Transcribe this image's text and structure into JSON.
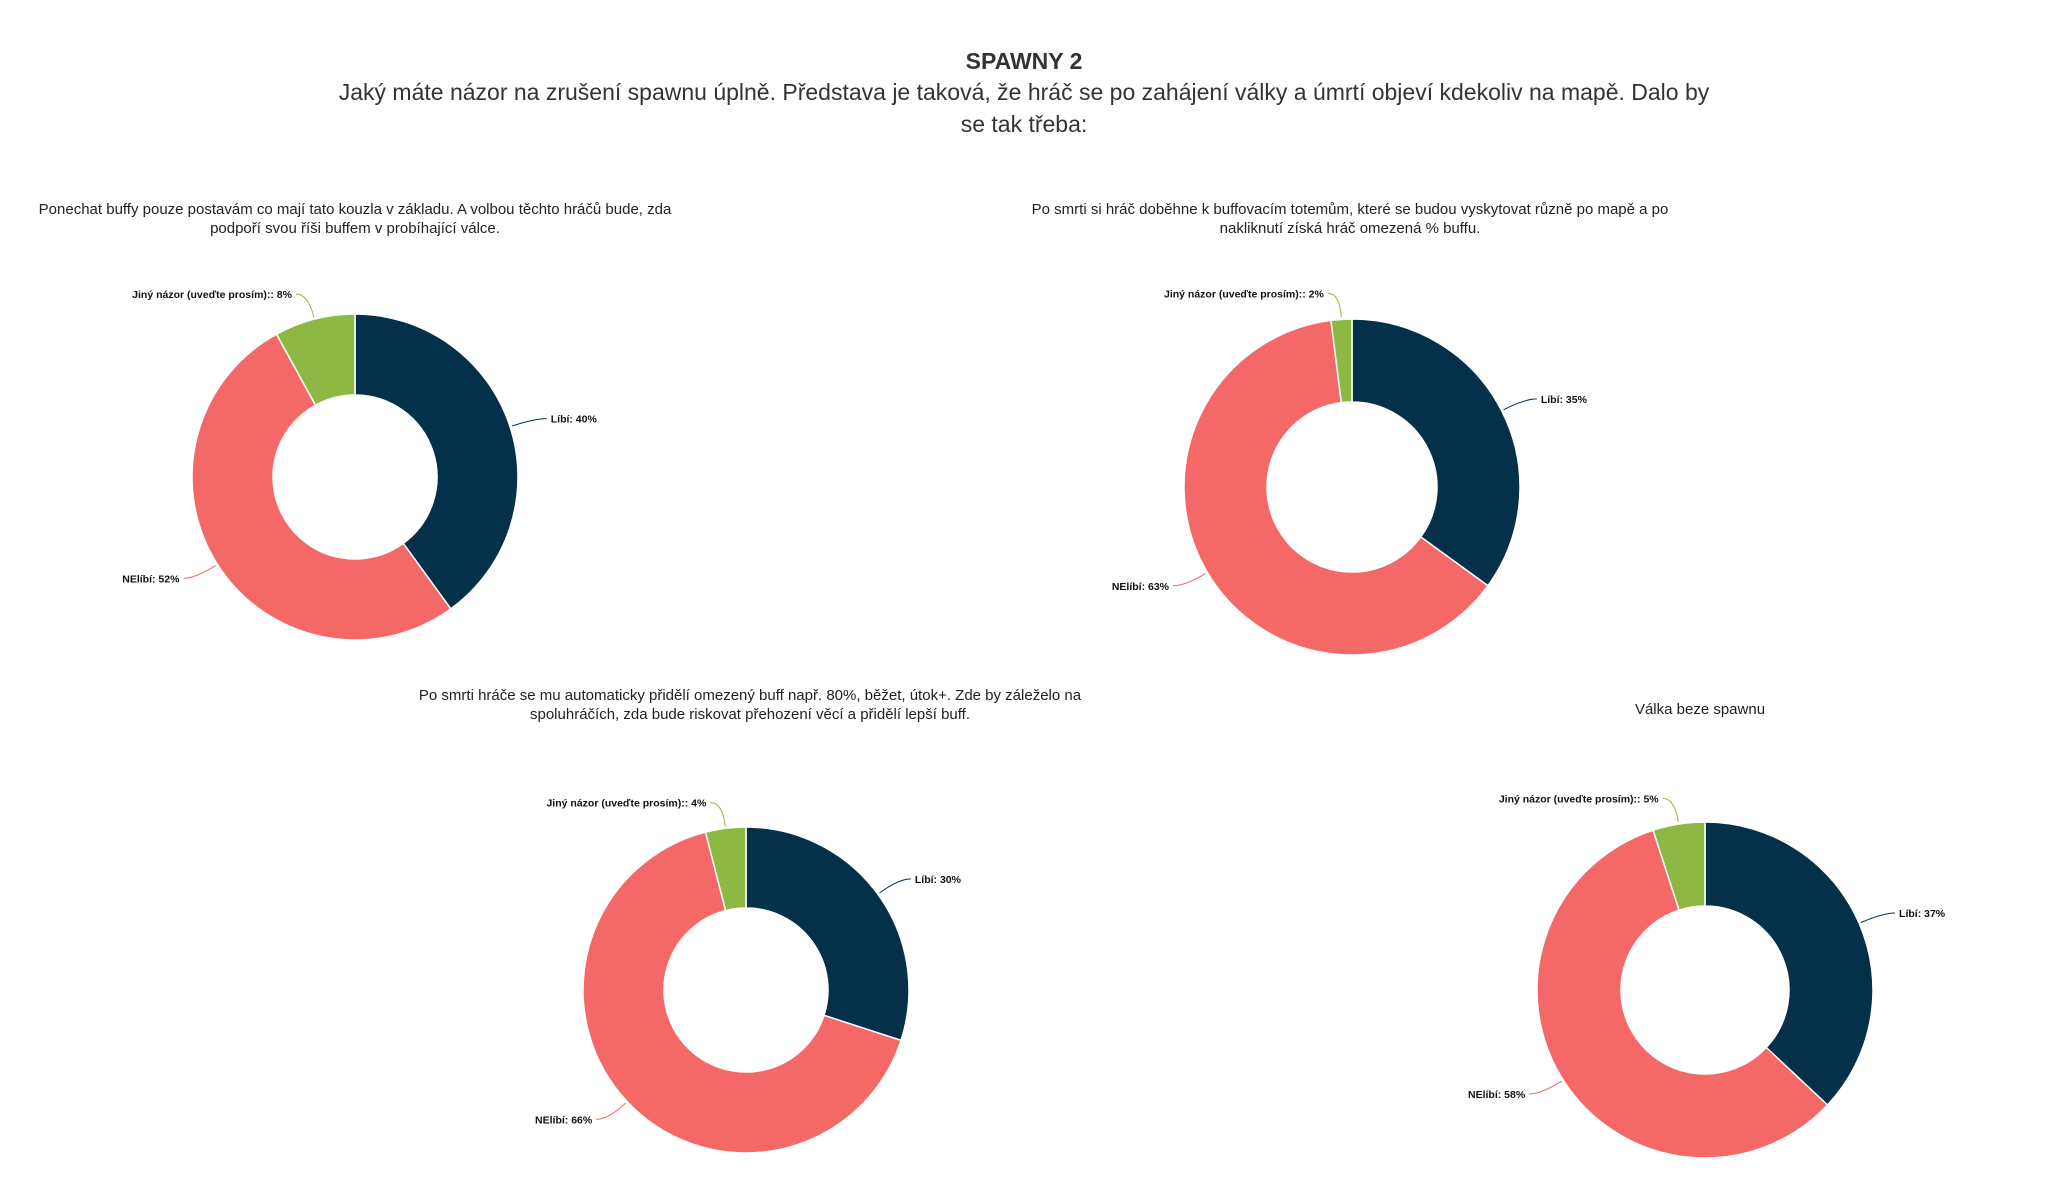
{
  "page": {
    "title": "SPAWNY 2",
    "subtitle": "Jaký máte názor na zrušení spawnu úplně. Představa je taková, že hráč se po zahájení války a úmrtí objeví kdekoliv na mapě. Dalo by se tak třeba:"
  },
  "colors": {
    "libi": "#05304a",
    "nelibi": "#f56868",
    "jiny": "#8db843",
    "hole": "#ffffff"
  },
  "chart_data": [
    {
      "type": "pie",
      "title": "Ponechat buffy pouze postavám co mají tato kouzla v základu. A volbou těchto hráčů bude, zda podpoří svou říši buffem v probíhající válce.",
      "slices": [
        {
          "key": "libi",
          "label": "Líbí: 40%",
          "value": 40
        },
        {
          "key": "nelibi",
          "label": "NElíbí: 52%",
          "value": 52
        },
        {
          "key": "jiny",
          "label": "Jiný názor (uveďte prosím):: 8%",
          "value": 8
        }
      ]
    },
    {
      "type": "pie",
      "title": "Po smrti si hráč doběhne k buffovacím totemům, které se budou vyskytovat různě po mapě a po nakliknutí získá hráč omezená % buffu.",
      "slices": [
        {
          "key": "libi",
          "label": "Líbí: 35%",
          "value": 35
        },
        {
          "key": "nelibi",
          "label": "NElíbí: 63%",
          "value": 63
        },
        {
          "key": "jiny",
          "label": "Jiný názor (uveďte prosím):: 2%",
          "value": 2
        }
      ]
    },
    {
      "type": "pie",
      "title": "Po smrti hráče se mu automaticky přidělí omezený buff např. 80%, běžet, útok+. Zde by záleželo na spoluhráčích, zda bude riskovat přehození věcí a přidělí lepší buff.",
      "slices": [
        {
          "key": "libi",
          "label": "Líbí: 30%",
          "value": 30
        },
        {
          "key": "nelibi",
          "label": "NElíbí: 66%",
          "value": 66
        },
        {
          "key": "jiny",
          "label": "Jiný názor (uveďte prosím):: 4%",
          "value": 4
        }
      ]
    },
    {
      "type": "pie",
      "title": "Válka beze spawnu",
      "slices": [
        {
          "key": "libi",
          "label": "Líbí: 37%",
          "value": 37
        },
        {
          "key": "nelibi",
          "label": "NElíbí: 58%",
          "value": 58
        },
        {
          "key": "jiny",
          "label": "Jiný názor (uveďte prosím):: 5%",
          "value": 5
        }
      ]
    }
  ]
}
